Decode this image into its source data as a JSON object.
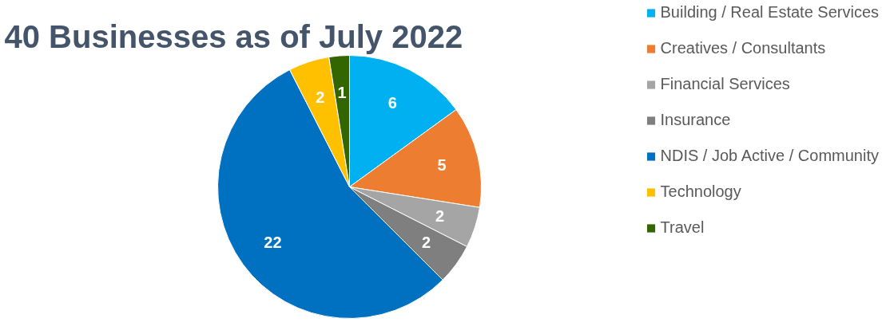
{
  "chart_data": {
    "type": "pie",
    "title": "40 Businesses as of July 2022",
    "categories": [
      "Building / Real Estate Services",
      "Creatives / Consultants",
      "Financial Services",
      "Insurance",
      "NDIS / Job Active / Community",
      "Technology",
      "Travel"
    ],
    "values": [
      6,
      5,
      2,
      2,
      22,
      2,
      1
    ],
    "colors": [
      "#00b0f0",
      "#ed7d31",
      "#a5a5a5",
      "#7f7f7f",
      "#0070c0",
      "#ffc000",
      "#336600"
    ],
    "data_labels": true,
    "legend": "right"
  }
}
